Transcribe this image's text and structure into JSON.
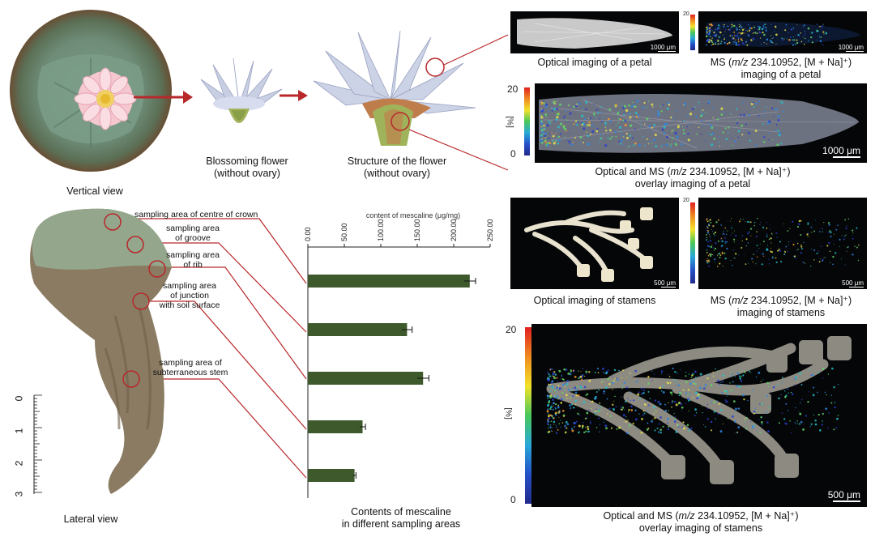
{
  "top_panel": {
    "captions": {
      "vertical_view": "Vertical view",
      "blossoming_line1": "Blossoming flower",
      "blossoming_line2": "(without ovary)",
      "structure_line1": "Structure of the flower",
      "structure_line2": "(without ovary)"
    }
  },
  "petal_panel": {
    "optical_caption": "Optical imaging of a petal",
    "ms_caption_prefix": "MS (",
    "ms_caption_mz": "m/z",
    "ms_caption_suffix": " 234.10952, [M + Na]⁺)",
    "ms_caption_line2": "imaging of a petal",
    "overlay_caption_prefix": "Optical and MS (",
    "overlay_caption_mz": "m/z",
    "overlay_caption_suffix": " 234.10952, [M + Na]⁺)",
    "overlay_caption_line2": "overlay imaging of a petal",
    "scale_small": "1000 μm",
    "scale_large": "1000 μm",
    "colorbar_max": "20",
    "colorbar_min": "0",
    "colorbar_unit": "[%]"
  },
  "stamen_panel": {
    "optical_caption": "Optical imaging of stamens",
    "ms_caption_prefix": "MS (",
    "ms_caption_mz": "m/z",
    "ms_caption_suffix": " 234.10952, [M + Na]⁺)",
    "ms_caption_line2": "imaging of stamens",
    "overlay_caption_prefix": "Optical and MS (",
    "overlay_caption_mz": "m/z",
    "overlay_caption_suffix": " 234.10952, [M + Na]⁺)",
    "overlay_caption_line2": "overlay imaging of stamens",
    "scale_small": "500 μm",
    "scale_large": "500 μm",
    "colorbar_max": "20",
    "colorbar_min": "0",
    "colorbar_unit": "[%]"
  },
  "lateral_panel": {
    "caption": "Lateral view",
    "sampling_labels": {
      "crown": "sampling area of centre of crown",
      "groove_l1": "sampling area",
      "groove_l2": "of groove",
      "rib_l1": "sampling area",
      "rib_l2": "of rib",
      "junction_l1": "sampling area",
      "junction_l2": "of junction",
      "junction_l3": "with soil surface",
      "stem_l1": "sampling area of",
      "stem_l2": "subterraneous stem"
    },
    "ruler_labels": [
      "0",
      "1",
      "2",
      "3"
    ]
  },
  "chart_data": {
    "type": "bar",
    "orientation": "horizontal",
    "title": "",
    "xlabel": "content of mescaline (μg/mg)",
    "caption_line1": "Contents of mescaline",
    "caption_line2": "in different sampling areas",
    "xlim": [
      0,
      250
    ],
    "xticks": [
      "0.00",
      "50.00",
      "100.00",
      "150.00",
      "200.00",
      "250.00"
    ],
    "categories": [
      "sampling area of centre of crown",
      "sampling area of groove",
      "sampling area of rib",
      "sampling area of junction with soil surface",
      "sampling area of subterraneous stem"
    ],
    "values": [
      222,
      136,
      158,
      75,
      64
    ],
    "errors": [
      8,
      7,
      8,
      4,
      2
    ],
    "bar_color": "#3e5a2c"
  }
}
